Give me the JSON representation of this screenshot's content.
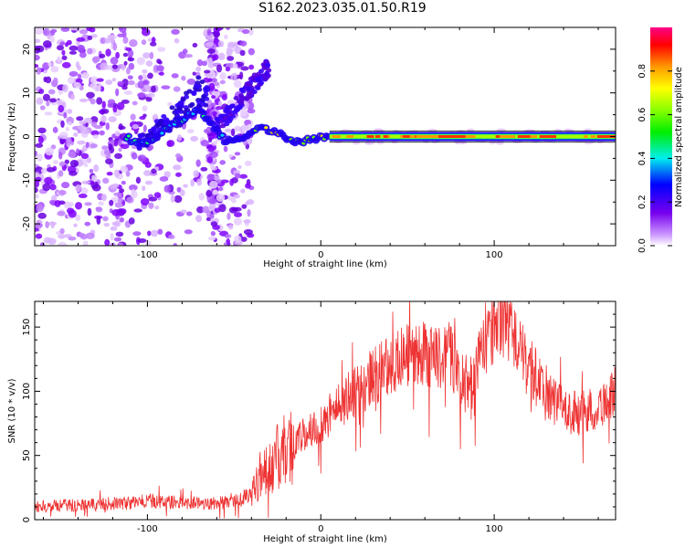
{
  "figure": {
    "title": "S162.2023.035.01.50.R19"
  },
  "chart_data": [
    {
      "type": "heatmap",
      "title": "",
      "xlabel": "Height of straight line (km)",
      "ylabel": "Frequency (Hz)",
      "xlim": [
        -165,
        170
      ],
      "ylim": [
        -25,
        25
      ],
      "xticks": [
        "-100",
        "0",
        "100"
      ],
      "yticks": [
        "-20",
        "-10",
        "0",
        "10",
        "20"
      ],
      "ridge": [
        {
          "x": -110,
          "y": -1.5
        },
        {
          "x": -100,
          "y": -1.2
        },
        {
          "x": -90,
          "y": 1.5
        },
        {
          "x": -80,
          "y": 4
        },
        {
          "x": -70,
          "y": 6
        },
        {
          "x": -55,
          "y": -1
        },
        {
          "x": -45,
          "y": 0
        },
        {
          "x": -35,
          "y": 2
        },
        {
          "x": -25,
          "y": 1
        },
        {
          "x": -15,
          "y": -1.5
        },
        {
          "x": -5,
          "y": -0.5
        },
        {
          "x": 5,
          "y": 0
        },
        {
          "x": 170,
          "y": 0
        }
      ],
      "colorbar": {
        "label": "Normalized spectral amplitude",
        "ticks": [
          "0.0",
          "0.2",
          "0.4",
          "0.6",
          "0.8"
        ],
        "range": [
          0,
          1
        ]
      }
    },
    {
      "type": "line",
      "title": "",
      "xlabel": "Height of straight line (km)",
      "ylabel": "SNR (10 * v/v)",
      "xlim": [
        -165,
        170
      ],
      "ylim": [
        0,
        170
      ],
      "xticks": [
        "-100",
        "0",
        "100"
      ],
      "yticks": [
        "0",
        "50",
        "100",
        "150"
      ],
      "color": "#ee3333",
      "envelope": {
        "x": [
          -165,
          -150,
          -130,
          -110,
          -100,
          -90,
          -80,
          -70,
          -60,
          -50,
          -45,
          -40,
          -35,
          -30,
          -25,
          -20,
          -15,
          -10,
          -5,
          0,
          5,
          10,
          20,
          30,
          40,
          50,
          60,
          70,
          75,
          80,
          85,
          90,
          95,
          100,
          105,
          110,
          115,
          120,
          130,
          140,
          150,
          160,
          170
        ],
        "y": [
          10,
          11,
          12,
          13,
          15,
          14,
          13,
          13,
          13,
          14,
          16,
          22,
          35,
          40,
          48,
          55,
          60,
          65,
          70,
          75,
          82,
          88,
          100,
          112,
          120,
          127,
          130,
          125,
          130,
          110,
          100,
          118,
          140,
          148,
          158,
          150,
          130,
          118,
          100,
          85,
          82,
          88,
          100
        ]
      }
    }
  ]
}
